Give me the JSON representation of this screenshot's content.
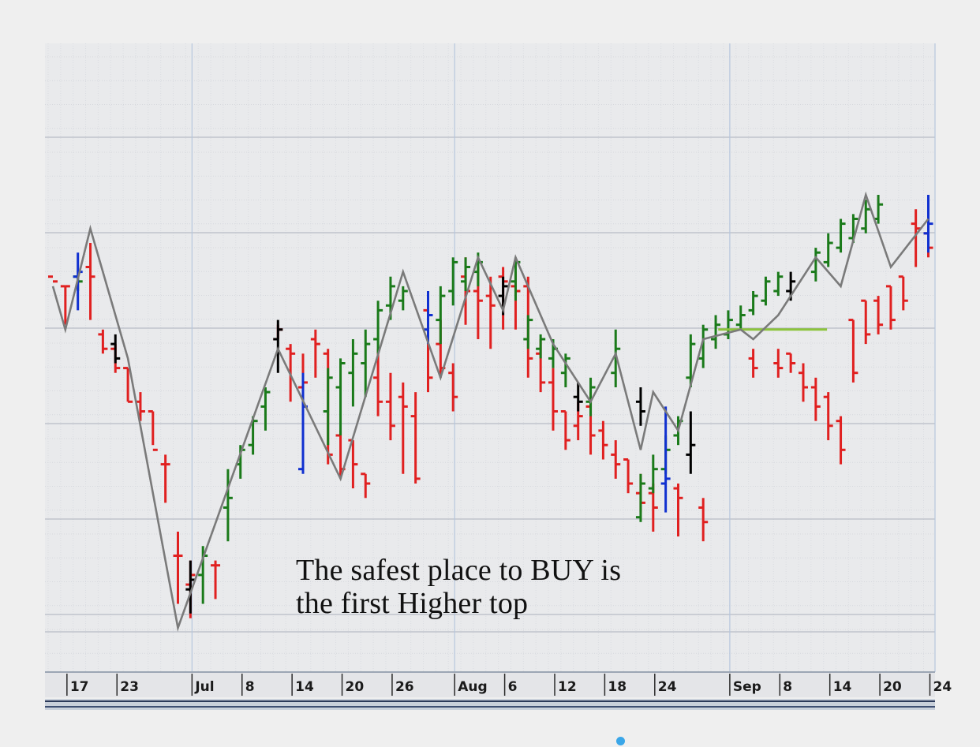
{
  "caption": {
    "line1": "The safest place to BUY is",
    "line2": "the first Higher top"
  },
  "chart_data": {
    "type": "ohlc-bar",
    "x_axis_ticks": [
      {
        "label": "17",
        "bar": 1
      },
      {
        "label": "23",
        "bar": 5
      },
      {
        "label": "Jul",
        "bar": 11
      },
      {
        "label": "8",
        "bar": 15
      },
      {
        "label": "14",
        "bar": 19
      },
      {
        "label": "20",
        "bar": 23
      },
      {
        "label": "26",
        "bar": 27
      },
      {
        "label": "Aug",
        "bar": 32
      },
      {
        "label": "6",
        "bar": 36
      },
      {
        "label": "12",
        "bar": 40
      },
      {
        "label": "18",
        "bar": 44
      },
      {
        "label": "24",
        "bar": 48
      },
      {
        "label": "Sep",
        "bar": 54
      },
      {
        "label": "8",
        "bar": 58
      },
      {
        "label": "14",
        "bar": 62
      },
      {
        "label": "20",
        "bar": 66
      },
      {
        "label": "24",
        "bar": 70
      }
    ],
    "bar_count": 71,
    "y_range": [
      0,
      100
    ],
    "grid": true,
    "zigzag_line": [
      [
        0,
        71
      ],
      [
        1,
        62
      ],
      [
        3,
        83
      ],
      [
        6,
        56
      ],
      [
        10,
        0
      ],
      [
        18,
        58
      ],
      [
        23,
        31
      ],
      [
        28,
        74
      ],
      [
        31,
        52
      ],
      [
        34,
        77
      ],
      [
        36,
        66
      ],
      [
        37,
        77
      ],
      [
        40,
        59
      ],
      [
        43,
        47
      ],
      [
        45,
        57
      ],
      [
        47,
        37
      ],
      [
        48,
        49
      ],
      [
        50,
        41
      ],
      [
        52,
        60
      ],
      [
        55,
        62
      ],
      [
        56,
        60
      ],
      [
        58,
        65
      ],
      [
        61,
        77
      ],
      [
        63,
        71
      ],
      [
        65,
        90
      ],
      [
        67,
        75
      ],
      [
        70,
        85
      ]
    ],
    "resistance_level": {
      "y": 62,
      "from_bar": 53.2,
      "to_bar": 61.9
    },
    "series": [
      {
        "color": "#e02020",
        "bars": [
          [
            0,
            72,
            72,
            73,
            72
          ],
          [
            1,
            63,
            71,
            71,
            71
          ],
          [
            3,
            64,
            80,
            75,
            73
          ],
          [
            4,
            57,
            62,
            61,
            58
          ],
          [
            5,
            53,
            59,
            58,
            54
          ],
          [
            6,
            47,
            54,
            54,
            47
          ],
          [
            7,
            43,
            49,
            47,
            45
          ],
          [
            8,
            38,
            45,
            45,
            37
          ],
          [
            9,
            26,
            36,
            34,
            34
          ],
          [
            10,
            5,
            20,
            15,
            15
          ],
          [
            11,
            2,
            14,
            9,
            11
          ],
          [
            13,
            6,
            14,
            13,
            13
          ],
          [
            18,
            60,
            63,
            60,
            62
          ],
          [
            19,
            47,
            59,
            58,
            57
          ],
          [
            20,
            48,
            57,
            50,
            51
          ],
          [
            21,
            52,
            62,
            60,
            59
          ],
          [
            22,
            34,
            58,
            57,
            36
          ],
          [
            23,
            31,
            41,
            40,
            33
          ],
          [
            24,
            29,
            39,
            39,
            34
          ],
          [
            25,
            27,
            32,
            32,
            30
          ],
          [
            26,
            44,
            58,
            52,
            47
          ],
          [
            27,
            39,
            53,
            47,
            42
          ],
          [
            28,
            32,
            51,
            48,
            46
          ],
          [
            29,
            30,
            49,
            44,
            31
          ],
          [
            30,
            49,
            70,
            66,
            52
          ],
          [
            31,
            52,
            64,
            59,
            54
          ],
          [
            32,
            45,
            55,
            53,
            48
          ],
          [
            33,
            63,
            77,
            73,
            70
          ],
          [
            34,
            60,
            75,
            70,
            68
          ],
          [
            35,
            58,
            73,
            69,
            67
          ],
          [
            36,
            62,
            75,
            73,
            72
          ],
          [
            37,
            62,
            74,
            71,
            70
          ],
          [
            38,
            52,
            73,
            71,
            56
          ],
          [
            39,
            49,
            60,
            57,
            51
          ],
          [
            40,
            41,
            54,
            51,
            45
          ],
          [
            41,
            37,
            45,
            45,
            39
          ],
          [
            42,
            39,
            47,
            42,
            44
          ],
          [
            43,
            36,
            49,
            46,
            40
          ],
          [
            44,
            35,
            43,
            41,
            38
          ],
          [
            45,
            31,
            39,
            36,
            34
          ],
          [
            46,
            28,
            35,
            35,
            30
          ],
          [
            47,
            24,
            32,
            28,
            26
          ],
          [
            48,
            20,
            30,
            28,
            25
          ],
          [
            50,
            19,
            30,
            29,
            27
          ],
          [
            52,
            18,
            27,
            25,
            22
          ],
          [
            56,
            52,
            58,
            56,
            54
          ],
          [
            58,
            52,
            58,
            55,
            54
          ],
          [
            59,
            53,
            57,
            57,
            55
          ],
          [
            60,
            47,
            55,
            53,
            50
          ],
          [
            61,
            43,
            52,
            50,
            46
          ],
          [
            62,
            39,
            49,
            48,
            42
          ],
          [
            63,
            34,
            44,
            43,
            37
          ],
          [
            64,
            51,
            64,
            64,
            53
          ],
          [
            65,
            59,
            68,
            68,
            61
          ],
          [
            66,
            61,
            69,
            68,
            63
          ],
          [
            67,
            62,
            71,
            71,
            64
          ],
          [
            68,
            66,
            73,
            73,
            68
          ],
          [
            69,
            75,
            87,
            84,
            83
          ],
          [
            70,
            77,
            84,
            82,
            79
          ]
        ]
      },
      {
        "color": "#1a7a1a",
        "bars": [
          [
            2,
            70,
            73,
            73,
            72
          ],
          [
            12,
            5,
            17,
            11,
            15
          ],
          [
            14,
            18,
            33,
            25,
            27
          ],
          [
            15,
            31,
            38,
            34,
            37
          ],
          [
            16,
            36,
            44,
            38,
            43
          ],
          [
            17,
            41,
            50,
            46,
            49
          ],
          [
            22,
            38,
            54,
            45,
            52
          ],
          [
            23,
            40,
            56,
            50,
            55
          ],
          [
            24,
            46,
            60,
            53,
            57
          ],
          [
            25,
            48,
            62,
            55,
            59
          ],
          [
            26,
            57,
            68,
            60,
            66
          ],
          [
            27,
            64,
            73,
            67,
            71
          ],
          [
            28,
            66,
            71,
            68,
            70
          ],
          [
            31,
            59,
            71,
            64,
            69
          ],
          [
            32,
            67,
            77,
            70,
            76
          ],
          [
            33,
            70,
            77,
            72,
            75
          ],
          [
            34,
            71,
            78,
            74,
            76
          ],
          [
            37,
            68,
            77,
            72,
            76
          ],
          [
            38,
            58,
            65,
            60,
            64
          ],
          [
            39,
            56,
            61,
            58,
            60
          ],
          [
            40,
            54,
            60,
            56,
            58
          ],
          [
            41,
            50,
            57,
            53,
            56
          ],
          [
            43,
            44,
            52,
            47,
            50
          ],
          [
            45,
            50,
            62,
            53,
            58
          ],
          [
            47,
            22,
            32,
            23,
            30
          ],
          [
            48,
            28,
            36,
            29,
            33
          ],
          [
            49,
            32,
            40,
            33,
            37
          ],
          [
            50,
            38,
            44,
            40,
            43
          ],
          [
            51,
            50,
            61,
            52,
            59
          ],
          [
            52,
            54,
            63,
            56,
            62
          ],
          [
            53,
            58,
            65,
            60,
            63
          ],
          [
            54,
            60,
            66,
            61,
            64
          ],
          [
            55,
            62,
            67,
            63,
            65
          ],
          [
            56,
            65,
            70,
            66,
            69
          ],
          [
            57,
            67,
            73,
            68,
            72
          ],
          [
            58,
            69,
            74,
            70,
            73
          ],
          [
            61,
            72,
            79,
            74,
            78
          ],
          [
            62,
            75,
            82,
            76,
            80
          ],
          [
            63,
            78,
            85,
            79,
            84
          ],
          [
            64,
            80,
            86,
            81,
            85
          ],
          [
            65,
            82,
            89,
            83,
            87
          ],
          [
            66,
            84,
            90,
            85,
            88
          ]
        ]
      },
      {
        "color": "#1030d0",
        "bars": [
          [
            2,
            66,
            78,
            73,
            74
          ],
          [
            20,
            32,
            53,
            33,
            46
          ],
          [
            30,
            59,
            70,
            62,
            65
          ],
          [
            49,
            24,
            46,
            30,
            31
          ],
          [
            70,
            78,
            90,
            82,
            84
          ]
        ]
      },
      {
        "color": "#000000",
        "bars": [
          [
            5,
            55,
            61,
            59,
            56
          ],
          [
            11,
            3,
            14,
            8,
            10
          ],
          [
            18,
            53,
            64,
            60,
            62
          ],
          [
            36,
            65,
            73,
            69,
            71
          ],
          [
            42,
            45,
            51,
            48,
            47
          ],
          [
            47,
            42,
            50,
            47,
            45
          ],
          [
            51,
            32,
            45,
            36,
            38
          ],
          [
            59,
            68,
            74,
            70,
            72
          ]
        ]
      }
    ]
  }
}
